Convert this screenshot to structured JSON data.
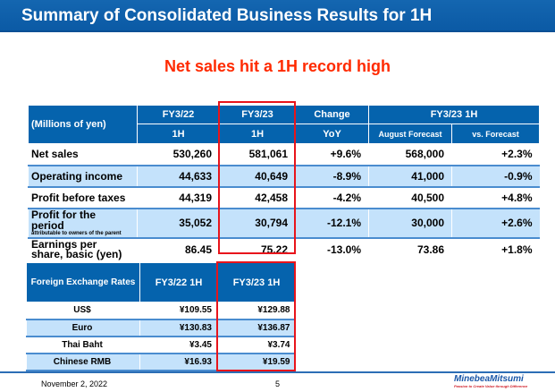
{
  "title": "Summary of Consolidated Business Results for 1H",
  "headline": "Net sales hit a 1H record high",
  "results": {
    "unit_label": "(Millions of yen)",
    "headers": {
      "fy22": "FY3/22",
      "fy23": "FY3/23",
      "change": "Change",
      "forecast_group": "FY3/23 1H",
      "fy22_sub": "1H",
      "fy23_sub": "1H",
      "change_sub": "YoY",
      "aug_forecast": "August Forecast",
      "vs_forecast": "vs. Forecast"
    },
    "rows": [
      {
        "label": "Net sales",
        "sub": "",
        "fy22": "530,260",
        "fy23": "581,061",
        "yoy": "+9.6%",
        "forecast": "568,000",
        "vs": "+2.3%"
      },
      {
        "label": "Operating income",
        "sub": "",
        "fy22": "44,633",
        "fy23": "40,649",
        "yoy": "-8.9%",
        "forecast": "41,000",
        "vs": "-0.9%"
      },
      {
        "label": "Profit before taxes",
        "sub": "",
        "fy22": "44,319",
        "fy23": "42,458",
        "yoy": "-4.2%",
        "forecast": "40,500",
        "vs": "+4.8%"
      },
      {
        "label": "Profit for the period",
        "sub": "attributable to owners of the parent",
        "fy22": "35,052",
        "fy23": "30,794",
        "yoy": "-12.1%",
        "forecast": "30,000",
        "vs": "+2.6%"
      },
      {
        "label": "Earnings per share, basic (yen)",
        "sub": "",
        "fy22": "86.45",
        "fy23": "75.22",
        "yoy": "-13.0%",
        "forecast": "73.86",
        "vs": "+1.8%"
      }
    ]
  },
  "fx": {
    "headers": {
      "label": "Foreign Exchange Rates",
      "fy22": "FY3/22 1H",
      "fy23": "FY3/23 1H"
    },
    "rows": [
      {
        "label": "US$",
        "fy22": "¥109.55",
        "fy23": "¥129.88"
      },
      {
        "label": "Euro",
        "fy22": "¥130.83",
        "fy23": "¥136.87"
      },
      {
        "label": "Thai Baht",
        "fy22": "¥3.45",
        "fy23": "¥3.74"
      },
      {
        "label": "Chinese RMB",
        "fy22": "¥16.93",
        "fy23": "¥19.59"
      }
    ]
  },
  "footer": {
    "date": "November 2, 2022",
    "page": "5",
    "logo": "MinebeaMitsumi",
    "tagline": "Passion to Create Value through Difference"
  },
  "colors": {
    "header_blue": "#0563ad",
    "row_alt": "#c4e2fb",
    "highlight_red": "#e8141b",
    "headline_red": "#ff2a00"
  }
}
